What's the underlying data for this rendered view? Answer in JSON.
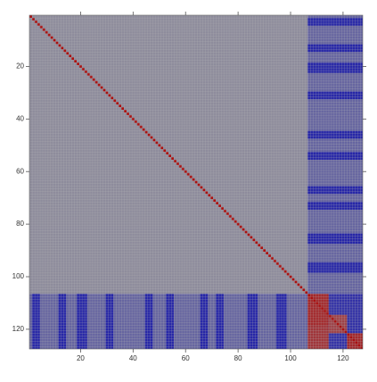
{
  "chart_data": {
    "type": "heatmap",
    "xlim": [
      0.5,
      127.5
    ],
    "ylim": [
      127.5,
      0.5
    ],
    "xticks": [
      20,
      40,
      60,
      80,
      100,
      120
    ],
    "yticks": [
      20,
      40,
      60,
      80,
      100,
      120
    ],
    "colorscale": {
      "min": -1,
      "max": 1,
      "low": "#1c1ca8",
      "mid": "#8e8c9c",
      "high": "#a81010"
    },
    "regions": [
      {
        "x": [
          1,
          106
        ],
        "y": [
          1,
          106
        ],
        "value": 0
      },
      {
        "x": [
          107,
          127
        ],
        "y": [
          1,
          106
        ],
        "value": -0.35
      },
      {
        "x": [
          1,
          106
        ],
        "y": [
          107,
          127
        ],
        "value": -0.35
      },
      {
        "x": [
          107,
          127
        ],
        "y": [
          2,
          4
        ],
        "value": -0.9
      },
      {
        "x": [
          107,
          127
        ],
        "y": [
          12,
          14
        ],
        "value": -0.9
      },
      {
        "x": [
          107,
          127
        ],
        "y": [
          19,
          22
        ],
        "value": -0.9
      },
      {
        "x": [
          107,
          127
        ],
        "y": [
          30,
          32
        ],
        "value": -0.9
      },
      {
        "x": [
          107,
          127
        ],
        "y": [
          45,
          47
        ],
        "value": -0.9
      },
      {
        "x": [
          107,
          127
        ],
        "y": [
          53,
          55
        ],
        "value": -0.9
      },
      {
        "x": [
          107,
          127
        ],
        "y": [
          66,
          68
        ],
        "value": -0.9
      },
      {
        "x": [
          107,
          127
        ],
        "y": [
          72,
          74
        ],
        "value": -0.9
      },
      {
        "x": [
          107,
          127
        ],
        "y": [
          84,
          87
        ],
        "value": -0.9
      },
      {
        "x": [
          107,
          127
        ],
        "y": [
          95,
          98
        ],
        "value": -0.9
      },
      {
        "x": [
          2,
          4
        ],
        "y": [
          107,
          127
        ],
        "value": -0.9
      },
      {
        "x": [
          12,
          14
        ],
        "y": [
          107,
          127
        ],
        "value": -0.9
      },
      {
        "x": [
          19,
          22
        ],
        "y": [
          107,
          127
        ],
        "value": -0.9
      },
      {
        "x": [
          30,
          32
        ],
        "y": [
          107,
          127
        ],
        "value": -0.9
      },
      {
        "x": [
          45,
          47
        ],
        "y": [
          107,
          127
        ],
        "value": -0.9
      },
      {
        "x": [
          53,
          55
        ],
        "y": [
          107,
          127
        ],
        "value": -0.9
      },
      {
        "x": [
          66,
          68
        ],
        "y": [
          107,
          127
        ],
        "value": -0.9
      },
      {
        "x": [
          72,
          74
        ],
        "y": [
          107,
          127
        ],
        "value": -0.9
      },
      {
        "x": [
          84,
          87
        ],
        "y": [
          107,
          127
        ],
        "value": -0.9
      },
      {
        "x": [
          95,
          98
        ],
        "y": [
          107,
          127
        ],
        "value": -0.9
      },
      {
        "x": [
          107,
          127
        ],
        "y": [
          107,
          127
        ],
        "value": -0.8
      },
      {
        "x": [
          107,
          114
        ],
        "y": [
          107,
          118
        ],
        "value": 0.8
      },
      {
        "x": [
          115,
          121
        ],
        "y": [
          115,
          121
        ],
        "value": 0.6
      },
      {
        "x": [
          107,
          114
        ],
        "y": [
          119,
          127
        ],
        "value": 0.7
      },
      {
        "x": [
          122,
          127
        ],
        "y": [
          122,
          127
        ],
        "value": 0.8
      }
    ],
    "diagonal": {
      "value": 1,
      "range": [
        1,
        127
      ]
    }
  }
}
